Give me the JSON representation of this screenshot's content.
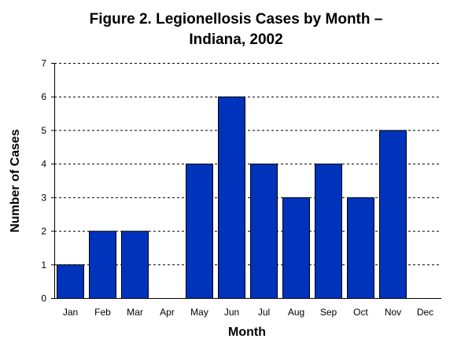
{
  "chart_data": {
    "type": "bar",
    "title_line1": "Figure 2.  Legionellosis Cases by Month –",
    "title_line2": "Indiana, 2002",
    "xlabel": "Month",
    "ylabel": "Number of Cases",
    "categories": [
      "Jan",
      "Feb",
      "Mar",
      "Apr",
      "May",
      "Jun",
      "Jul",
      "Aug",
      "Sep",
      "Oct",
      "Nov",
      "Dec"
    ],
    "values": [
      1,
      2,
      2,
      0,
      4,
      6,
      4,
      3,
      4,
      3,
      5,
      0
    ],
    "ylim": [
      0,
      7
    ],
    "yticks": [
      "0",
      "1",
      "2",
      "3",
      "4",
      "5",
      "6",
      "7"
    ],
    "grid": "horizontal dashed",
    "bar_color": "#0033BB"
  }
}
